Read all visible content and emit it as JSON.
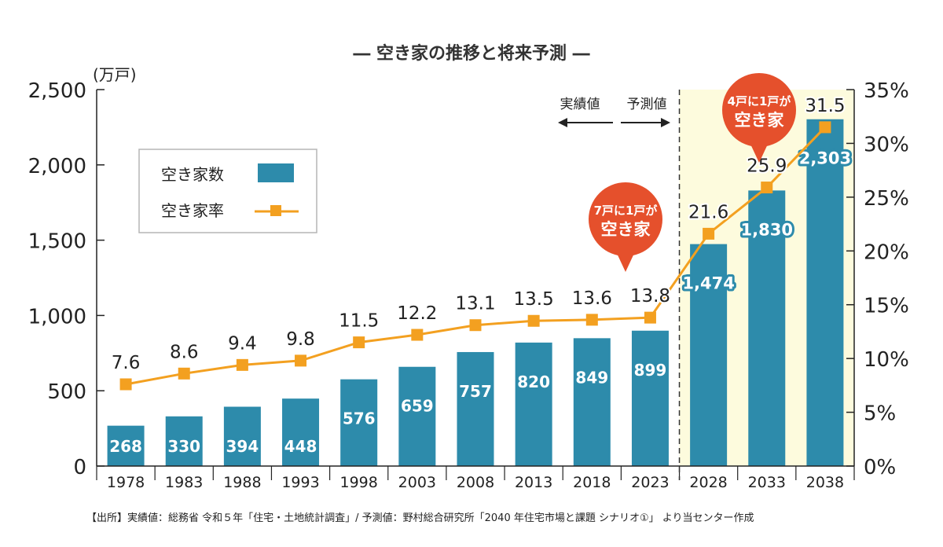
{
  "chart_data": {
    "type": "bar",
    "title": "― 空き家の推移と将来予測 ―",
    "categories": [
      "1978",
      "1983",
      "1988",
      "1993",
      "1998",
      "2003",
      "2008",
      "2013",
      "2018",
      "2023",
      "2028",
      "2033",
      "2038"
    ],
    "series": [
      {
        "name": "空き家数",
        "type": "bar",
        "axis": "left",
        "unit": "万戸",
        "values": [
          268,
          330,
          394,
          448,
          576,
          659,
          757,
          820,
          849,
          899,
          1474,
          1830,
          2303
        ],
        "labels": [
          "268",
          "330",
          "394",
          "448",
          "576",
          "659",
          "757",
          "820",
          "849",
          "899",
          "1,474",
          "1,830",
          "2,303"
        ]
      },
      {
        "name": "空き家率",
        "type": "line",
        "axis": "right",
        "unit": "%",
        "values": [
          7.6,
          8.6,
          9.4,
          9.8,
          11.5,
          12.2,
          13.1,
          13.5,
          13.6,
          13.8,
          21.6,
          25.9,
          31.5
        ],
        "labels": [
          "7.6",
          "8.6",
          "9.4",
          "9.8",
          "11.5",
          "12.2",
          "13.1",
          "13.5",
          "13.6",
          "13.8",
          "21.6",
          "25.9",
          "31.5"
        ]
      }
    ],
    "y_left": {
      "label": "(万戸)",
      "ylim": [
        0,
        2500
      ],
      "ticks": [
        0,
        500,
        1000,
        1500,
        2000,
        2500
      ],
      "tick_labels": [
        "0",
        "500",
        "1,000",
        "1,500",
        "2,000",
        "2,500"
      ]
    },
    "y_right": {
      "ylim": [
        0,
        35
      ],
      "ticks": [
        0,
        5,
        10,
        15,
        20,
        25,
        30,
        35
      ],
      "tick_labels": [
        "0%",
        "5%",
        "10%",
        "15%",
        "20%",
        "25%",
        "30%",
        "35%"
      ]
    },
    "split": {
      "after_category": "2023",
      "actual_label": "実績値",
      "forecast_label": "予測値"
    },
    "legend": {
      "position": "top-left",
      "bar_label": "空き家数",
      "line_label": "空き家率"
    },
    "callouts": [
      {
        "category": "2023",
        "lines": [
          "7戸に1戸が",
          "空き家"
        ]
      },
      {
        "category": "2033",
        "lines": [
          "4戸に1戸が",
          "空き家"
        ]
      }
    ],
    "source": "【出所】実績値：総務省 令和５年「住宅・土地統計調査」/ 予測値：野村総合研究所「2040 年住宅市場と課題 シナリオ①」 より当センター作成",
    "colors": {
      "bar": "#2d8bab",
      "line": "#f3a020",
      "forecast_bg": "#fdfbdd",
      "callout": "#e5502c",
      "text": "#333333"
    }
  }
}
